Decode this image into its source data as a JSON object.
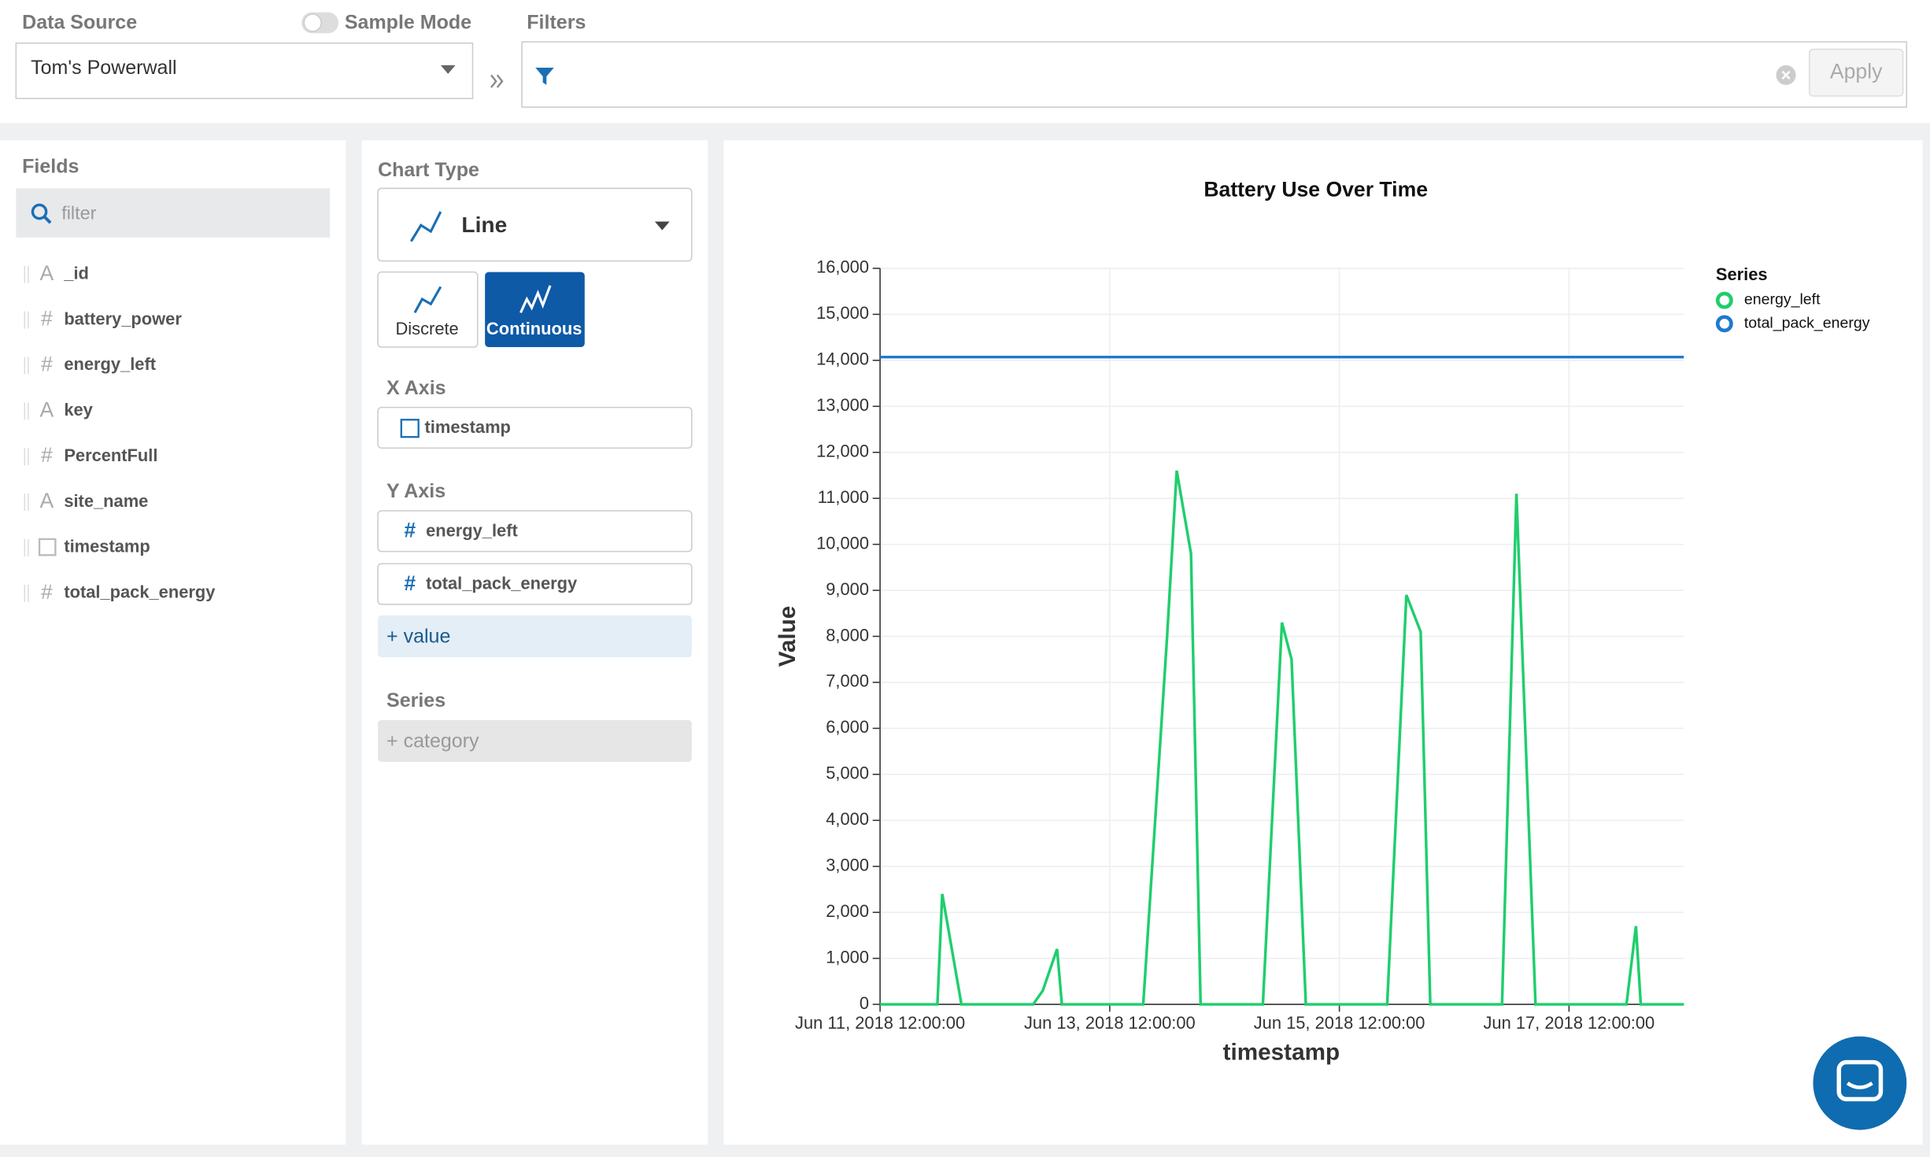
{
  "header": {
    "data_source_label": "Data Source",
    "sample_mode_label": "Sample Mode",
    "filters_label": "Filters",
    "data_source": "Tom's Powerwall",
    "apply": "Apply"
  },
  "fields_panel": {
    "title": "Fields",
    "filter_placeholder": "filter",
    "fields": [
      {
        "icon": "A",
        "name": "_id"
      },
      {
        "icon": "#",
        "name": "battery_power"
      },
      {
        "icon": "#",
        "name": "energy_left"
      },
      {
        "icon": "A",
        "name": "key"
      },
      {
        "icon": "#",
        "name": "PercentFull"
      },
      {
        "icon": "A",
        "name": "site_name"
      },
      {
        "name": "timestamp"
      },
      {
        "icon": "#",
        "name": "total_pack_energy"
      }
    ]
  },
  "config_panel": {
    "chart_type_label": "Chart Type",
    "chart_type": "Line",
    "discrete": "Discrete",
    "continuous": "Continuous",
    "x_axis_label": "X Axis",
    "x_field": "timestamp",
    "y_axis_label": "Y Axis",
    "y_fields": [
      "energy_left",
      "total_pack_energy"
    ],
    "add_value": "+ value",
    "series_label": "Series",
    "add_category": "+ category"
  },
  "chart_data": {
    "type": "line",
    "title": "Battery Use Over Time",
    "x_label": "timestamp",
    "y_label": "Value",
    "legend_title": "Series",
    "legend_position": "top-right",
    "grid": true,
    "x": [
      "2018-06-11 12:00:00",
      "2018-06-12 00:00:00",
      "2018-06-12 01:00:00",
      "2018-06-12 02:00:00",
      "2018-06-12 05:00:00",
      "2018-06-12 20:00:00",
      "2018-06-12 22:00:00",
      "2018-06-13 01:00:00",
      "2018-06-13 02:00:00",
      "2018-06-13 19:00:00",
      "2018-06-14 00:00:00",
      "2018-06-14 02:00:00",
      "2018-06-14 05:00:00",
      "2018-06-14 07:00:00",
      "2018-06-14 20:00:00",
      "2018-06-15 00:00:00",
      "2018-06-15 02:00:00",
      "2018-06-15 05:00:00",
      "2018-06-15 22:00:00",
      "2018-06-16 02:00:00",
      "2018-06-16 05:00:00",
      "2018-06-16 07:00:00",
      "2018-06-16 22:00:00",
      "2018-06-17 01:00:00",
      "2018-06-17 05:00:00",
      "2018-06-18 00:00:00",
      "2018-06-18 02:00:00",
      "2018-06-18 03:00:00",
      "2018-06-18 12:00:00"
    ],
    "series": [
      {
        "name": "energy_left",
        "color": "#1fce6d",
        "values": [
          0,
          0,
          2400,
          1800,
          0,
          0,
          300,
          1200,
          0,
          0,
          8000,
          11600,
          9800,
          0,
          0,
          8300,
          7500,
          0,
          0,
          8900,
          8100,
          0,
          0,
          11100,
          0,
          0,
          1700,
          0,
          0
        ]
      },
      {
        "name": "total_pack_energy",
        "color": "#1f78d1",
        "values": [
          14070,
          14070,
          14070,
          14070,
          14070,
          14070,
          14070,
          14070,
          14070,
          14070,
          14070,
          14070,
          14070,
          14070,
          14070,
          14070,
          14070,
          14070,
          14070,
          14070,
          14070,
          14070,
          14070,
          14070,
          14070,
          14070,
          14070,
          14070,
          14070
        ]
      }
    ],
    "xlim": [
      "2018-06-11 12:00:00",
      "2018-06-18 12:00:00"
    ],
    "xticks": [
      {
        "value": "2018-06-11 12:00:00",
        "label": "Jun 11, 2018 12:00:00"
      },
      {
        "value": "2018-06-13 12:00:00",
        "label": "Jun 13, 2018 12:00:00"
      },
      {
        "value": "2018-06-15 12:00:00",
        "label": "Jun 15, 2018 12:00:00"
      },
      {
        "value": "2018-06-17 12:00:00",
        "label": "Jun 17, 2018 12:00:00"
      }
    ],
    "ylim": [
      0,
      16000
    ],
    "yticks": [
      0,
      {
        "value": 1000,
        "label": "1,000"
      },
      {
        "value": 2000,
        "label": "2,000"
      },
      {
        "value": 3000,
        "label": "3,000"
      },
      {
        "value": 4000,
        "label": "4,000"
      },
      {
        "value": 5000,
        "label": "5,000"
      },
      {
        "value": 6000,
        "label": "6,000"
      },
      {
        "value": 7000,
        "label": "7,000"
      },
      {
        "value": 8000,
        "label": "8,000"
      },
      {
        "value": 9000,
        "label": "9,000"
      },
      {
        "value": 10000,
        "label": "10,000"
      },
      {
        "value": 11000,
        "label": "11,000"
      },
      {
        "value": 12000,
        "label": "12,000"
      },
      {
        "value": 13000,
        "label": "13,000"
      },
      {
        "value": 14000,
        "label": "14,000"
      },
      {
        "value": 15000,
        "label": "15,000"
      },
      {
        "value": 16000,
        "label": "16,000"
      }
    ]
  }
}
